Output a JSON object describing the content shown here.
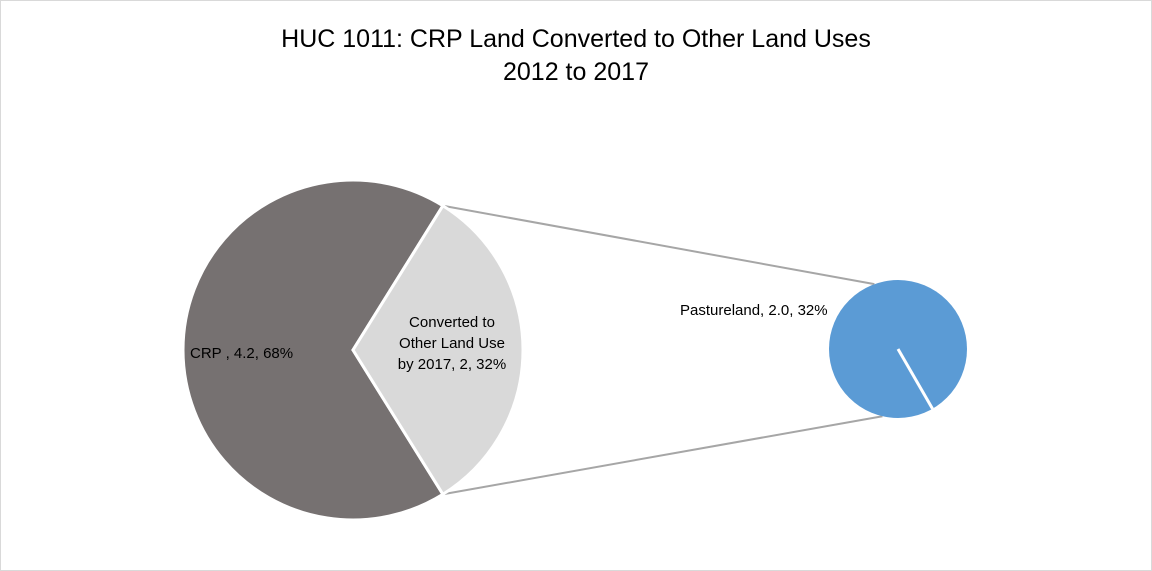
{
  "chart_data": {
    "type": "pie",
    "subtype": "pie-of-pie",
    "title": "HUC 1011: CRP Land Converted to Other Land Uses",
    "subtitle": "2012 to 2017",
    "main_pie": [
      {
        "label": "CRP",
        "value": 4.2,
        "percent": 68,
        "color": "#767171",
        "data_label": "CRP , 4.2, 68%"
      },
      {
        "label": "Converted to Other Land Use by 2017",
        "value": 2,
        "percent": 32,
        "color": "#d9d9d9",
        "data_label_lines": [
          "Converted to",
          "Other Land Use",
          "by 2017, 2, 32%"
        ]
      }
    ],
    "secondary_pie": [
      {
        "label": "Pastureland",
        "value": 2.0,
        "percent": 32,
        "color": "#5b9bd5",
        "data_label": "Pastureland, 2.0, 32%"
      }
    ],
    "connector_color": "#a6a6a6",
    "legend": "none"
  }
}
